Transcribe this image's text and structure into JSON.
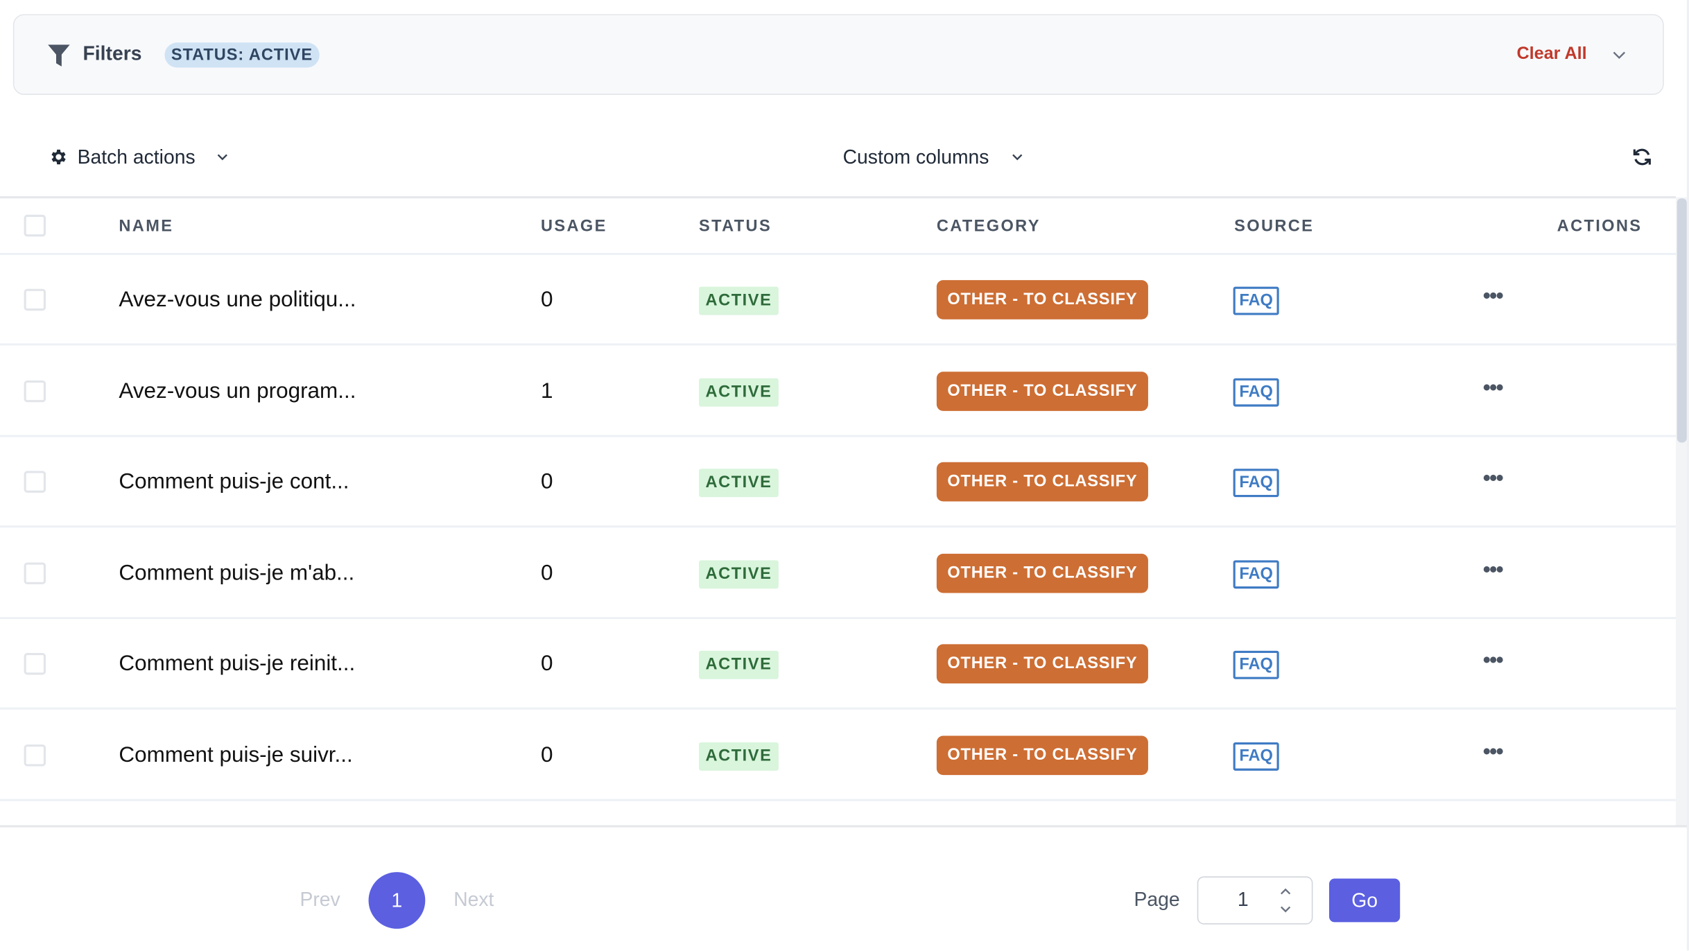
{
  "filters": {
    "label": "Filters",
    "chips": [
      "STATUS: ACTIVE"
    ],
    "clear_all": "Clear All"
  },
  "toolbar": {
    "batch_actions": "Batch actions",
    "custom_columns": "Custom columns"
  },
  "table": {
    "columns": [
      "NAME",
      "USAGE",
      "STATUS",
      "CATEGORY",
      "SOURCE",
      "ACTIONS"
    ],
    "rows": [
      {
        "name": "Avez-vous une politiqu...",
        "usage": "0",
        "status": "ACTIVE",
        "category": "OTHER - TO CLASSIFY",
        "source": "FAQ"
      },
      {
        "name": "Avez-vous un program...",
        "usage": "1",
        "status": "ACTIVE",
        "category": "OTHER - TO CLASSIFY",
        "source": "FAQ"
      },
      {
        "name": "Comment puis-je cont...",
        "usage": "0",
        "status": "ACTIVE",
        "category": "OTHER - TO CLASSIFY",
        "source": "FAQ"
      },
      {
        "name": "Comment puis-je m'ab...",
        "usage": "0",
        "status": "ACTIVE",
        "category": "OTHER - TO CLASSIFY",
        "source": "FAQ"
      },
      {
        "name": "Comment puis-je reinit...",
        "usage": "0",
        "status": "ACTIVE",
        "category": "OTHER - TO CLASSIFY",
        "source": "FAQ"
      },
      {
        "name": "Comment puis-je suivr...",
        "usage": "0",
        "status": "ACTIVE",
        "category": "OTHER - TO CLASSIFY",
        "source": "FAQ"
      }
    ]
  },
  "pagination": {
    "prev": "Prev",
    "current": "1",
    "next": "Next",
    "page_label": "Page",
    "page_value": "1",
    "go": "Go"
  },
  "colors": {
    "accent": "#5b5fe0",
    "category": "#cd6e34",
    "active_bg": "#d9f5dc",
    "source": "#3f7bc4",
    "clear": "#c0392b"
  }
}
